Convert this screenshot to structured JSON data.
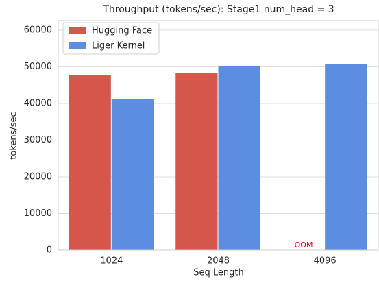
{
  "chart_data": {
    "type": "bar",
    "title": "Throughput (tokens/sec): Stage1 num_head = 3",
    "x_label": "Seq Length",
    "y_label": "tokens/sec",
    "categories": [
      "1024",
      "2048",
      "4096"
    ],
    "series": [
      {
        "name": "Hugging Face",
        "color": "#d5574b",
        "values": [
          47660,
          48220,
          null
        ]
      },
      {
        "name": "Liger Kernel",
        "color": "#5b8de0",
        "values": [
          41120,
          50090,
          50650
        ]
      }
    ],
    "annotation": "OOM",
    "annotation_color": "#e8000b",
    "ylim": [
      0,
      62600
    ],
    "yticks": [
      0,
      10000,
      20000,
      30000,
      40000,
      50000,
      60000
    ],
    "grid": true,
    "legend": "upper left"
  }
}
